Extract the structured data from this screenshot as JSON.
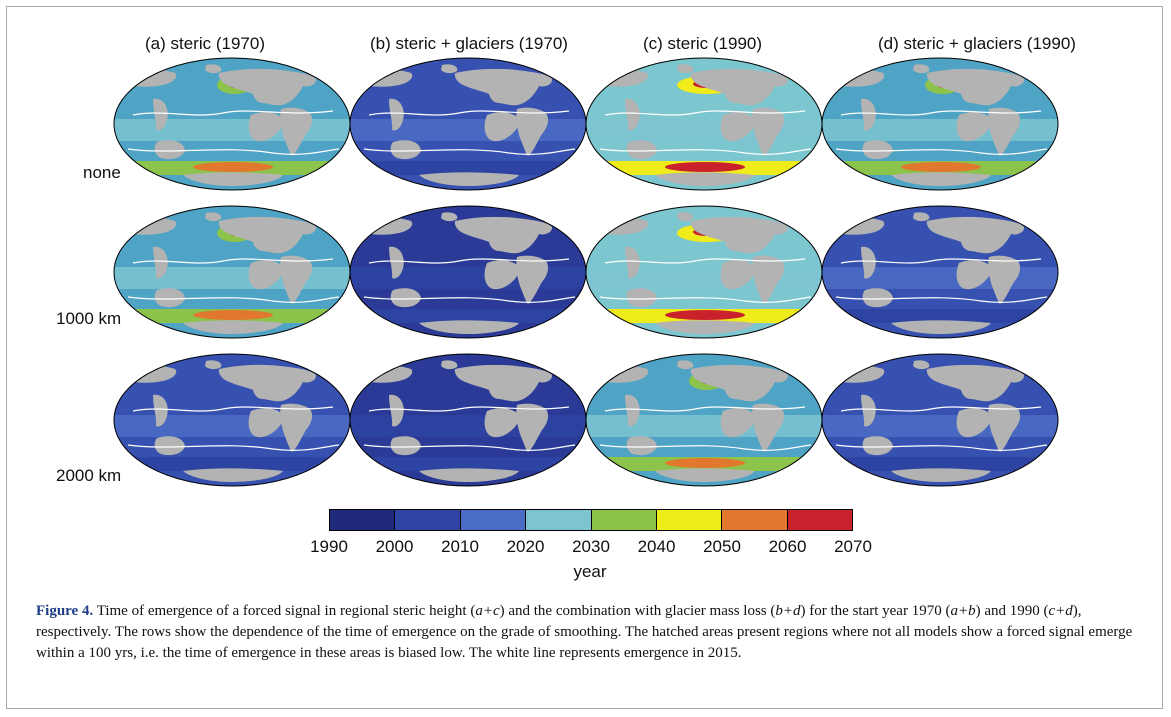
{
  "columns": [
    {
      "title": "(a) steric (1970)"
    },
    {
      "title": "(b) steric + glaciers (1970)"
    },
    {
      "title": "(c) steric (1990)"
    },
    {
      "title": "(d) steric + glaciers (1990)"
    }
  ],
  "rows": [
    {
      "label": "none"
    },
    {
      "label": "1000 km"
    },
    {
      "label": "2000 km"
    }
  ],
  "maps": [
    [
      "mid",
      "low",
      "high",
      "mid"
    ],
    [
      "mid",
      "vlow",
      "high",
      "low"
    ],
    [
      "low",
      "vlow",
      "mid",
      "low"
    ]
  ],
  "palette": {
    "ocean_base": {
      "vlow": "#2a3a96",
      "low": "#3751b0",
      "mid": "#4fa3c4",
      "high": "#7cc6cf"
    },
    "land": "#b3b3b3",
    "contour": "#ffffff"
  },
  "colorbar": {
    "colors": [
      "#1f2a7a",
      "#2e44a2",
      "#4b6cc4",
      "#7cc4d1",
      "#8cc34b",
      "#f0ec1c",
      "#e1782d",
      "#c9222c"
    ],
    "ticks": [
      "1990",
      "2000",
      "2010",
      "2020",
      "2030",
      "2040",
      "2050",
      "2060",
      "2070"
    ],
    "label": "year"
  },
  "caption": {
    "label": "Figure 4.",
    "parts": [
      {
        "t": "  Time of emergence of a forced signal in regional steric height (",
        "i": false
      },
      {
        "t": "a+c",
        "i": true
      },
      {
        "t": ") and the combination with glacier mass loss (",
        "i": false
      },
      {
        "t": "b+d",
        "i": true
      },
      {
        "t": ") for the start year 1970 (",
        "i": false
      },
      {
        "t": "a+b",
        "i": true
      },
      {
        "t": ") and 1990 (",
        "i": false
      },
      {
        "t": "c+d",
        "i": true
      },
      {
        "t": "), respectively. The rows show the dependence of the time of emergence on the grade of smoothing. The hatched areas present regions where not all models show a forced signal emerge within a 100 yrs, i.e. the time of emergence in these areas is biased low. The white line represents emergence in 2015.",
        "i": false
      }
    ]
  }
}
